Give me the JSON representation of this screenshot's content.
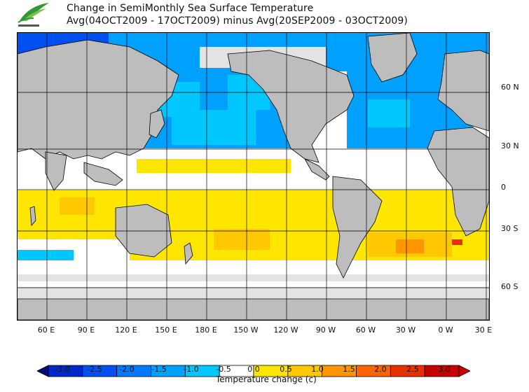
{
  "header": {
    "title_line1": "Change in SemiMonthly Sea Surface Temperature",
    "title_line2": "Avg(04OCT2009 - 17OCT2009) minus Avg(20SEP2009 - 03OCT2009)",
    "logo_icon": "leaf-logo-icon"
  },
  "map": {
    "longitude_labels": [
      "60 E",
      "90 E",
      "120 E",
      "150 E",
      "180 E",
      "150 W",
      "120 W",
      "90 W",
      "60 W",
      "30 W",
      "0 W",
      "30 E"
    ],
    "latitude_labels": [
      "60 N",
      "30 N",
      "0",
      "30 S",
      "60 S"
    ],
    "colors": {
      "land": "#bdbdbd",
      "ice": "#e3e3e3",
      "ocean_neutral": "#ffffff"
    }
  },
  "legend": {
    "title": "Temperature change  (c)",
    "ticks": [
      "-3.0",
      "-2.5",
      "-2.0",
      "-1.5",
      "-1.0",
      "-0.5",
      "0.0",
      "0.5",
      "1.0",
      "1.5",
      "2.0",
      "2.5",
      "3.0"
    ],
    "colors": [
      "#0a0a7a",
      "#0028c8",
      "#0050f0",
      "#0078ff",
      "#00a0ff",
      "#00c8ff",
      "#ffffff",
      "#ffe600",
      "#ffc800",
      "#ff9600",
      "#ff6400",
      "#e63200",
      "#c80000",
      "#a00000"
    ]
  }
}
